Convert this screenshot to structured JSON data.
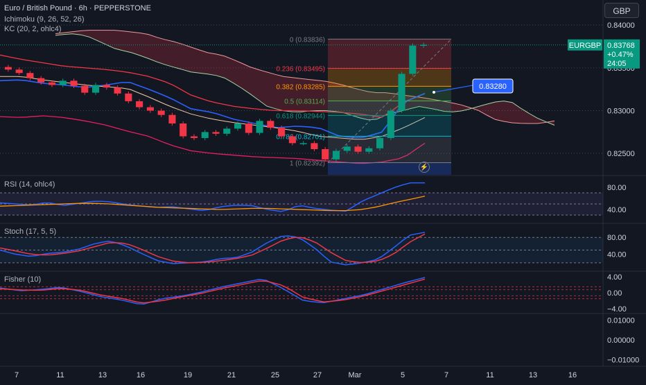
{
  "header": {
    "symbol_title": "Euro / British Pound · 6h · PEPPERSTONE",
    "ichimoku_label": "Ichimoku (9, 26, 52, 26)",
    "kc_label": "KC (20, 2, ohlc4)",
    "currency": "GBP"
  },
  "price_panel": {
    "axis_ticks": [
      "0.84000",
      "0.83500",
      "0.83000",
      "0.82500"
    ],
    "ticker_tag": "EURGBP",
    "last_price": "0.83768",
    "change_pct": "+0.47%",
    "countdown": "24:05",
    "target_label": "0.83280"
  },
  "fibonacci": {
    "levels": [
      {
        "label": "0 (0.83836)",
        "price": 0.83836,
        "color": "#787b86"
      },
      {
        "label": "0.236 (0.83495)",
        "price": 0.83495,
        "color": "#f23645"
      },
      {
        "label": "0.382 (0.83285)",
        "price": 0.83285,
        "color": "#ff9800"
      },
      {
        "label": "0.5 (0.83114)",
        "price": 0.83114,
        "color": "#4caf50"
      },
      {
        "label": "0.618 (0.82944)",
        "price": 0.82944,
        "color": "#089981"
      },
      {
        "label": "0.786 (0.82701)",
        "price": 0.82701,
        "color": "#00bcd4"
      },
      {
        "label": "1 (0.82392)",
        "price": 0.82392,
        "color": "#787b86"
      }
    ]
  },
  "rsi_panel": {
    "label": "RSI (14, ohlc4)",
    "ticks": [
      "80.00",
      "40.00"
    ]
  },
  "stoch_panel": {
    "label": "Stoch (17, 5, 5)",
    "ticks": [
      "80.00",
      "40.00"
    ]
  },
  "fisher_panel": {
    "label": "Fisher (10)",
    "ticks": [
      "4.00",
      "0.00",
      "−4.00"
    ]
  },
  "extra_panel": {
    "ticks": [
      "0.01000",
      "0.00000",
      "−0.01000"
    ]
  },
  "time_axis": {
    "labels": [
      "7",
      "11",
      "13",
      "16",
      "19",
      "21",
      "25",
      "27",
      "Mar",
      "5",
      "7",
      "11",
      "13",
      "16"
    ]
  },
  "colors": {
    "background": "#131722",
    "up": "#089981",
    "down": "#f23645",
    "blue_line": "#2962ff",
    "orange_line": "#ff9800",
    "rsi_line": "#2962ff",
    "kc_band": "#e91e63",
    "last_price_bg": "#089981"
  },
  "chart_data": {
    "type": "line",
    "title": "Euro / British Pound · 6h · PEPPERSTONE",
    "xlabel": "",
    "ylabel": "",
    "ylim": [
      0.8225,
      0.8405
    ],
    "series": [
      {
        "name": "EURGBP",
        "values": [
          0.8348,
          0.8344,
          0.8338,
          0.8333,
          0.833,
          0.8335,
          0.8329,
          0.8321,
          0.833,
          0.8327,
          0.832,
          0.8311,
          0.8304,
          0.83,
          0.8295,
          0.8285,
          0.827,
          0.8268,
          0.8275,
          0.8273,
          0.8279,
          0.8285,
          0.8274,
          0.8288,
          0.828,
          0.827,
          0.8262,
          0.8262,
          0.8255,
          0.8243,
          0.8253,
          0.8258,
          0.8252,
          0.8256,
          0.8268,
          0.83,
          0.8343,
          0.8376,
          0.8377
        ]
      }
    ],
    "annotations": [
      "0.83280"
    ]
  }
}
